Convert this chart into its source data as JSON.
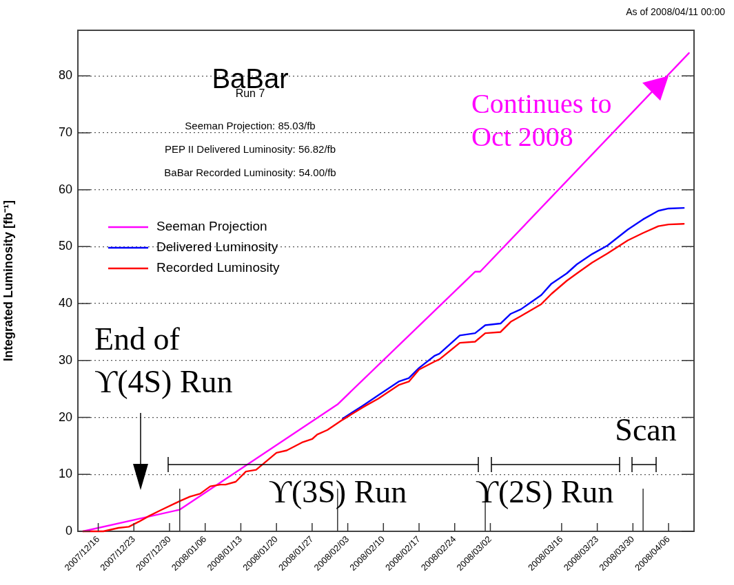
{
  "chart_data": {
    "type": "line",
    "title": "BaBar",
    "subtitle": "Run 7",
    "ylabel": "Integrated Luminosity [fb⁻¹]",
    "xlim": [
      "2007-12-12",
      "2008-04-11"
    ],
    "xticks": [
      {
        "value": "2007-12-16",
        "label": "2007/12/16"
      },
      {
        "value": "2007-12-23",
        "label": "2007/12/23"
      },
      {
        "value": "2007-12-30",
        "label": "2007/12/30"
      },
      {
        "value": "2008-01-06",
        "label": "2008/01/06"
      },
      {
        "value": "2008-01-13",
        "label": "2008/01/13"
      },
      {
        "value": "2008-01-20",
        "label": "2008/01/20"
      },
      {
        "value": "2008-01-27",
        "label": "2008/01/27"
      },
      {
        "value": "2008-02-03",
        "label": "2008/02/03"
      },
      {
        "value": "2008-02-10",
        "label": "2008/02/10"
      },
      {
        "value": "2008-02-17",
        "label": "2008/02/17"
      },
      {
        "value": "2008-02-24",
        "label": "2008/02/24"
      },
      {
        "value": "2008-03-02",
        "label": "2008/03/02"
      },
      {
        "value": "2008-03-16",
        "label": "2008/03/16"
      },
      {
        "value": "2008-03-23",
        "label": "2008/03/23"
      },
      {
        "value": "2008-03-30",
        "label": "2008/03/30"
      },
      {
        "value": "2008-04-06",
        "label": "2008/04/06"
      }
    ],
    "ref_lines": [
      {
        "axis": "x",
        "value": "2008-01-01"
      },
      {
        "axis": "x",
        "value": "2008-02-01"
      },
      {
        "axis": "x",
        "value": "2008-03-01"
      },
      {
        "axis": "x",
        "value": "2008-04-01"
      }
    ],
    "ylim": [
      0,
      88
    ],
    "yticks": [
      0,
      10,
      20,
      30,
      40,
      50,
      60,
      70,
      80
    ],
    "grid": "y",
    "legend": "top left",
    "series": [
      {
        "name": "Seeman Projection",
        "color": "#ff00ff",
        "x": [
          "2007-12-13",
          "2008-01-01",
          "2008-02-01",
          "2008-02-28",
          "2008-02-29",
          "2008-04-10"
        ],
        "values": [
          0,
          3.8,
          22.3,
          45.6,
          45.6,
          84
        ]
      },
      {
        "name": "Delivered Luminosity",
        "color": "#0000ff",
        "x": [
          "2008-02-02",
          "2008-02-06",
          "2008-02-09",
          "2008-02-13",
          "2008-02-15",
          "2008-02-17",
          "2008-02-20",
          "2008-02-21",
          "2008-02-25",
          "2008-02-28",
          "2008-03-01",
          "2008-03-04",
          "2008-03-06",
          "2008-03-08",
          "2008-03-12",
          "2008-03-14",
          "2008-03-17",
          "2008-03-19",
          "2008-03-22",
          "2008-03-25",
          "2008-03-29",
          "2008-04-01",
          "2008-04-04",
          "2008-04-06",
          "2008-04-09"
        ],
        "values": [
          19.8,
          22.1,
          23.9,
          26.3,
          26.9,
          28.7,
          30.8,
          31.2,
          34.4,
          34.8,
          36.2,
          36.5,
          38.2,
          39,
          41.5,
          43.5,
          45.3,
          46.9,
          48.7,
          50.2,
          53,
          54.8,
          56.3,
          56.7,
          56.8
        ]
      },
      {
        "name": "Recorded Luminosity",
        "color": "#ff0000",
        "x": [
          "2007-12-13",
          "2007-12-17",
          "2007-12-20",
          "2007-12-22",
          "2007-12-24",
          "2007-12-26",
          "2007-12-28",
          "2008-01-01",
          "2008-01-03",
          "2008-01-05",
          "2008-01-07",
          "2008-01-09",
          "2008-01-10",
          "2008-01-12",
          "2008-01-14",
          "2008-01-16",
          "2008-01-20",
          "2008-01-22",
          "2008-01-25",
          "2008-01-27",
          "2008-01-28",
          "2008-01-30",
          "2008-02-02",
          "2008-02-06",
          "2008-02-09",
          "2008-02-13",
          "2008-02-15",
          "2008-02-17",
          "2008-02-20",
          "2008-02-21",
          "2008-02-25",
          "2008-02-28",
          "2008-03-01",
          "2008-03-04",
          "2008-03-06",
          "2008-03-08",
          "2008-03-12",
          "2008-03-14",
          "2008-03-17",
          "2008-03-19",
          "2008-03-22",
          "2008-03-25",
          "2008-03-29",
          "2008-04-01",
          "2008-04-04",
          "2008-04-06",
          "2008-04-09"
        ],
        "values": [
          0,
          0,
          0.6,
          0.8,
          1.7,
          2.7,
          3.6,
          5.3,
          6.1,
          6.6,
          7.9,
          8.2,
          8.2,
          8.7,
          10.5,
          10.8,
          13.8,
          14.2,
          15.6,
          16.2,
          17,
          17.8,
          19.6,
          21.8,
          23.3,
          25.7,
          26.3,
          28.4,
          29.8,
          30.2,
          33.1,
          33.3,
          34.8,
          35,
          36.8,
          37.8,
          39.9,
          41.7,
          44,
          45.3,
          47.2,
          48.8,
          51.1,
          52.4,
          53.6,
          53.9,
          54
        ]
      }
    ],
    "annotations": [
      "As of 2008/04/11 00:00",
      "Seeman Projection: 85.03/fb",
      "PEP II Delivered Luminosity: 56.82/fb",
      "BaBar Recorded Luminosity: 54.00/fb",
      {
        "text": "Continues to Oct 2008",
        "x": "2008-04-06",
        "y": 80
      },
      "End of ϒ(4S) Run",
      "ϒ(3S) Run",
      "ϒ(2S) Run",
      "Scan"
    ]
  }
}
